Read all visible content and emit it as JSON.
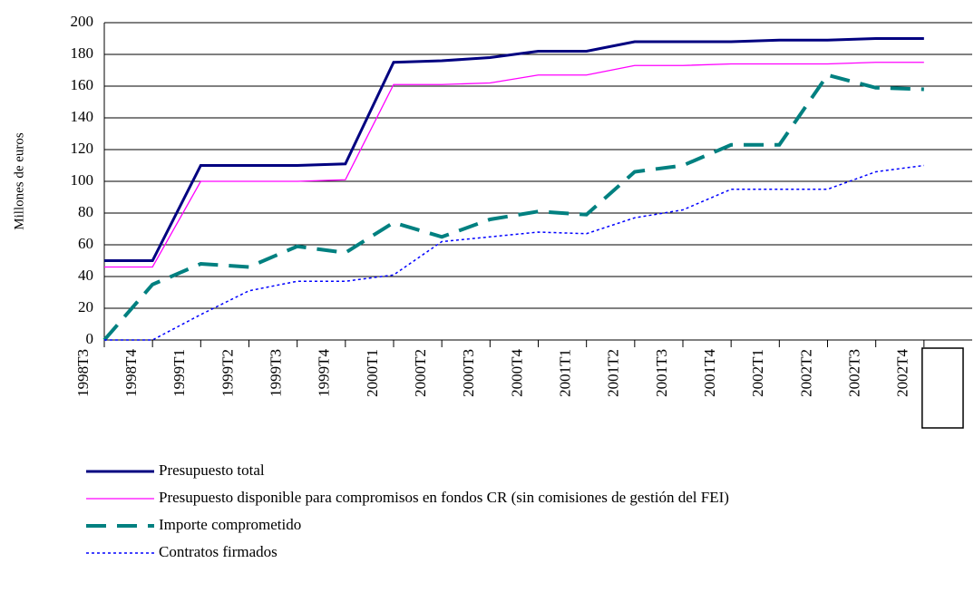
{
  "chart_data": {
    "type": "line",
    "y_label": "Millones de euros",
    "categories": [
      "1998T3",
      "1998T4",
      "1999T1",
      "1999T2",
      "1999T3",
      "1999T4",
      "2000T1",
      "2000T2",
      "2000T3",
      "2000T4",
      "2001T1",
      "2001T2",
      "2001T3",
      "2001T4",
      "2002T1",
      "2002T2",
      "2002T3",
      "2002T4"
    ],
    "series": [
      {
        "name": "Presupuesto total",
        "color": "#000080",
        "style": "solid-thick",
        "values": [
          50,
          50,
          110,
          110,
          110,
          111,
          175,
          176,
          178,
          182,
          182,
          188,
          188,
          188,
          189,
          189,
          190,
          190
        ]
      },
      {
        "name": "Presupuesto disponible para compromisos en fondos CR (sin comisiones de gestión  del FEI)",
        "color": "#ff00ff",
        "style": "solid",
        "values": [
          46,
          46,
          100,
          100,
          100,
          101,
          161,
          161,
          162,
          167,
          167,
          173,
          173,
          174,
          174,
          174,
          175,
          175
        ]
      },
      {
        "name": "Importe comprometido",
        "color": "#008080",
        "style": "dash",
        "values": [
          0,
          35,
          48,
          46,
          59,
          55,
          74,
          65,
          76,
          81,
          79,
          106,
          110,
          123,
          123,
          167,
          159,
          158
        ]
      },
      {
        "name": "Contratos firmados",
        "color": "#0000ff",
        "style": "dot",
        "values": [
          0,
          0,
          16,
          31,
          37,
          37,
          41,
          62,
          65,
          68,
          67,
          77,
          82,
          95,
          95,
          95,
          106,
          110
        ]
      }
    ],
    "ylim": [
      0,
      200
    ],
    "yticks": [
      0,
      20,
      40,
      60,
      80,
      100,
      120,
      140,
      160,
      180,
      200
    ],
    "grid": true
  }
}
